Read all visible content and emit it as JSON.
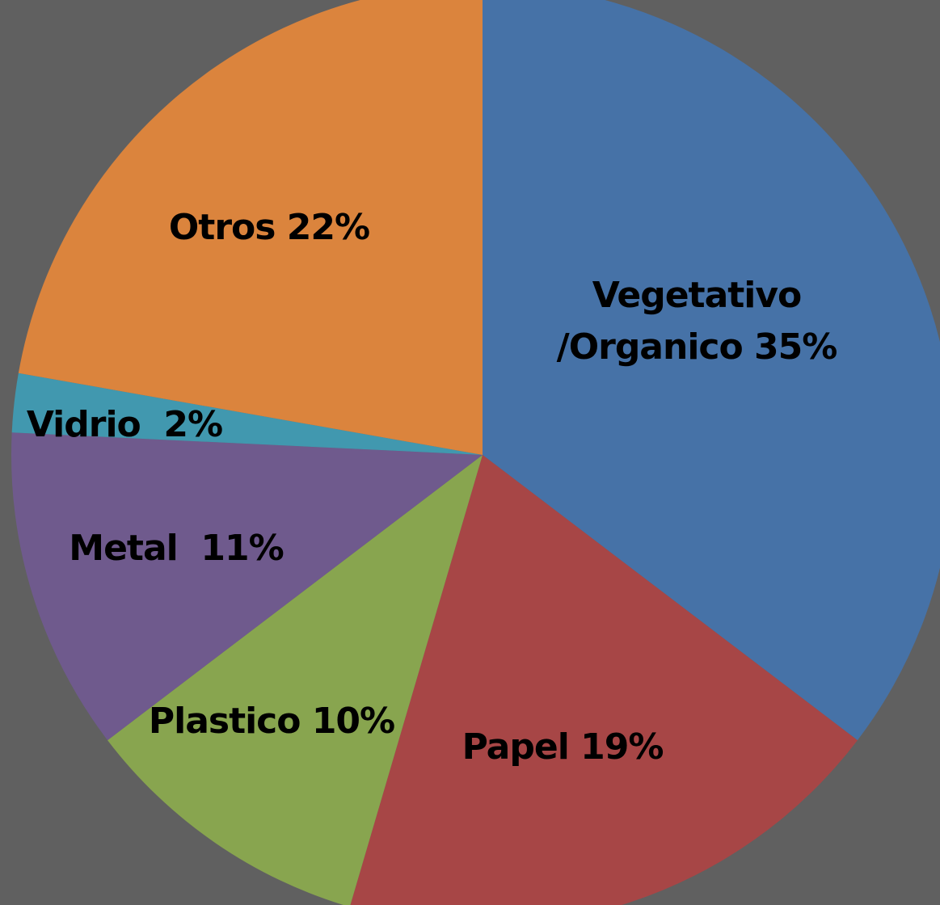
{
  "page": {
    "background": "#606060"
  },
  "chart_data": {
    "type": "pie",
    "title": "",
    "start_angle_deg": 0,
    "direction": "clockwise",
    "slices": [
      {
        "name": "Vegetativo /Organico",
        "value": 35,
        "label_lines": [
          "Vegetativo",
          "/Organico 35%"
        ],
        "color": "#4672A7"
      },
      {
        "name": "Papel",
        "value": 19,
        "label_lines": [
          "Papel 19%"
        ],
        "color": "#A74646"
      },
      {
        "name": "Plastico",
        "value": 10,
        "label_lines": [
          "Plastico 10%"
        ],
        "color": "#88A54F"
      },
      {
        "name": "Metal",
        "value": 11,
        "label_lines": [
          "Metal  11%"
        ],
        "color": "#6F5A8D"
      },
      {
        "name": "Vidrio",
        "value": 2,
        "label_lines": [
          "Vidrio  2%"
        ],
        "color": "#4198AF"
      },
      {
        "name": "Otros",
        "value": 22,
        "label_lines": [
          "Otros 22%"
        ],
        "color": "#DB843D"
      }
    ]
  }
}
